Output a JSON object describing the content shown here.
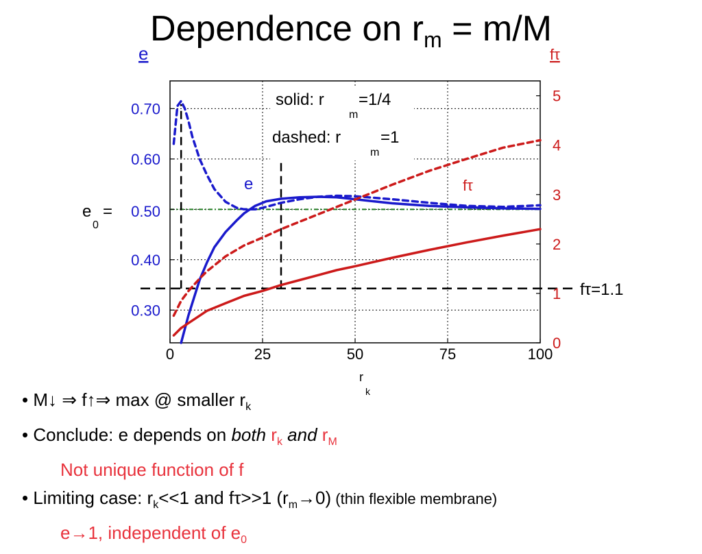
{
  "title": {
    "main": "Dependence on r",
    "sub": "m",
    "rest": " = m/M"
  },
  "chart_data": {
    "type": "line",
    "title": "Dependence on r_m = m/M",
    "xlabel": "r",
    "xlabel_sub": "k",
    "x_ticks": [
      "0",
      "25",
      "50",
      "75",
      "100"
    ],
    "xlim": [
      0,
      100
    ],
    "left_axis": {
      "label": "e",
      "ticks": [
        "0.30",
        "0.40",
        "0.50",
        "0.60",
        "0.70"
      ],
      "ylim": [
        0.235,
        0.755
      ],
      "color": "#1a1acc"
    },
    "right_axis": {
      "label": "fτ",
      "ticks": [
        "0",
        "1",
        "2",
        "3",
        "4",
        "5"
      ],
      "ylim": [
        0,
        5.3
      ],
      "color": "#cc1a1a"
    },
    "grid": "dotted",
    "legend": {
      "solid": "solid:  r",
      "solid_sub": "m",
      "solid_val": "=1/4",
      "dashed": "dashed:  r",
      "dashed_sub": "m",
      "dashed_val": "=1"
    },
    "annotations": {
      "e_curve": "e",
      "ft_curve": "fτ",
      "e0_prefix": "e",
      "e0_sub": "0",
      "e0_eq": "=",
      "e0_tick": "0.50",
      "ft_marker": "fτ=1.1"
    },
    "reference_lines": {
      "e0": 0.5,
      "ft": 1.1,
      "x_markers": [
        3,
        30
      ]
    },
    "series": [
      {
        "axis": "left",
        "style": "solid",
        "color": "#1a1acc",
        "x": [
          3,
          5,
          8,
          10,
          12,
          15,
          18,
          20,
          23,
          26,
          30,
          35,
          40,
          45,
          50,
          55,
          60,
          70,
          80,
          90,
          100
        ],
        "values": [
          0.235,
          0.29,
          0.36,
          0.395,
          0.425,
          0.455,
          0.478,
          0.492,
          0.507,
          0.516,
          0.521,
          0.524,
          0.525,
          0.524,
          0.52,
          0.516,
          0.512,
          0.507,
          0.504,
          0.502,
          0.501
        ]
      },
      {
        "axis": "left",
        "style": "dashed",
        "color": "#1a1acc",
        "x": [
          1,
          2,
          3,
          4,
          5,
          6,
          8,
          10,
          12,
          15,
          18,
          20,
          23,
          25,
          30,
          35,
          40,
          45,
          50,
          60,
          70,
          80,
          90,
          100
        ],
        "values": [
          0.63,
          0.705,
          0.715,
          0.7,
          0.675,
          0.645,
          0.6,
          0.568,
          0.54,
          0.515,
          0.503,
          0.5,
          0.5,
          0.503,
          0.513,
          0.52,
          0.525,
          0.527,
          0.526,
          0.52,
          0.513,
          0.507,
          0.505,
          0.508
        ]
      },
      {
        "axis": "right",
        "style": "solid",
        "color": "#cc1a1a",
        "x": [
          1,
          3,
          5,
          8,
          10,
          15,
          20,
          25,
          30,
          35,
          40,
          45,
          50,
          60,
          70,
          80,
          90,
          100
        ],
        "values": [
          0.15,
          0.3,
          0.4,
          0.55,
          0.65,
          0.8,
          0.95,
          1.05,
          1.17,
          1.27,
          1.37,
          1.47,
          1.55,
          1.72,
          1.88,
          2.03,
          2.17,
          2.3
        ]
      },
      {
        "axis": "right",
        "style": "dashed",
        "color": "#cc1a1a",
        "x": [
          1,
          3,
          5,
          8,
          10,
          15,
          20,
          25,
          30,
          35,
          40,
          50,
          60,
          70,
          80,
          90,
          100
        ],
        "values": [
          0.55,
          0.85,
          1.05,
          1.3,
          1.45,
          1.75,
          1.97,
          2.13,
          2.3,
          2.45,
          2.6,
          2.9,
          3.2,
          3.48,
          3.72,
          3.95,
          4.1
        ]
      }
    ]
  },
  "bullets": {
    "b1": {
      "dot": "•",
      "text": " M↓ ⇒ f↑⇒ max @ smaller r",
      "sub": "k"
    },
    "b2": {
      "dot": "•",
      "pre": " Conclude:  e depends on ",
      "both": "both",
      "r1": " r",
      "r1_sub": "k",
      "and": " and",
      "r2": " r",
      "r2_sub": "M"
    },
    "b2_note": "Not unique function of f",
    "b3": {
      "dot": "•",
      "pre": " Limiting case:  r",
      "sub1": "k",
      "mid": "<<1 and fτ>>1 (r",
      "sub2": "m",
      "post": "→0)",
      "small": " (thin flexible membrane)"
    },
    "b3_note_pre": "e→1, independent of e",
    "b3_note_sub": "0"
  }
}
